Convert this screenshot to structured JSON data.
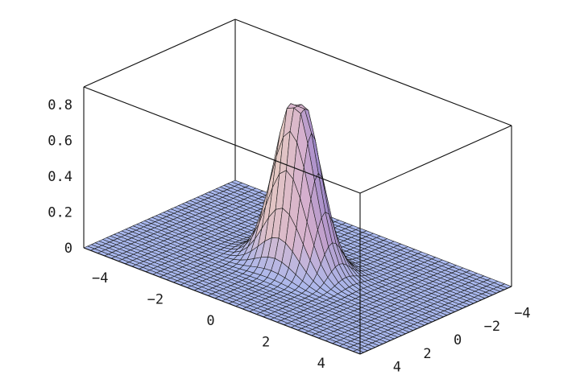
{
  "chart_data": {
    "type": "surface3d",
    "title": "",
    "xlabel": "",
    "ylabel": "",
    "zlabel": "",
    "function": "exp(-(x^2 + y^2))",
    "x_range": [
      -5,
      5
    ],
    "y_range": [
      -5,
      5
    ],
    "z_range": [
      0,
      0.9
    ],
    "grid_resolution": 40,
    "peak": {
      "x": 0,
      "y": 0,
      "z": 1.0,
      "clipped_at": 0.9
    },
    "x_ticks": [
      "-4",
      "-2",
      "0",
      "2",
      "4"
    ],
    "y_ticks": [
      "-4",
      "-2",
      "0",
      "2",
      "4"
    ],
    "z_ticks": [
      "0",
      "0.2",
      "0.4",
      "0.6",
      "0.8"
    ],
    "box": true,
    "colors": {
      "base": "#a9b8ee",
      "peak_high": "#f6e3b6",
      "peak_mid": "#c79ad8",
      "shadow": "#4a5fb0",
      "mesh": "#1a1a1a",
      "box_edge": "#111111"
    }
  }
}
